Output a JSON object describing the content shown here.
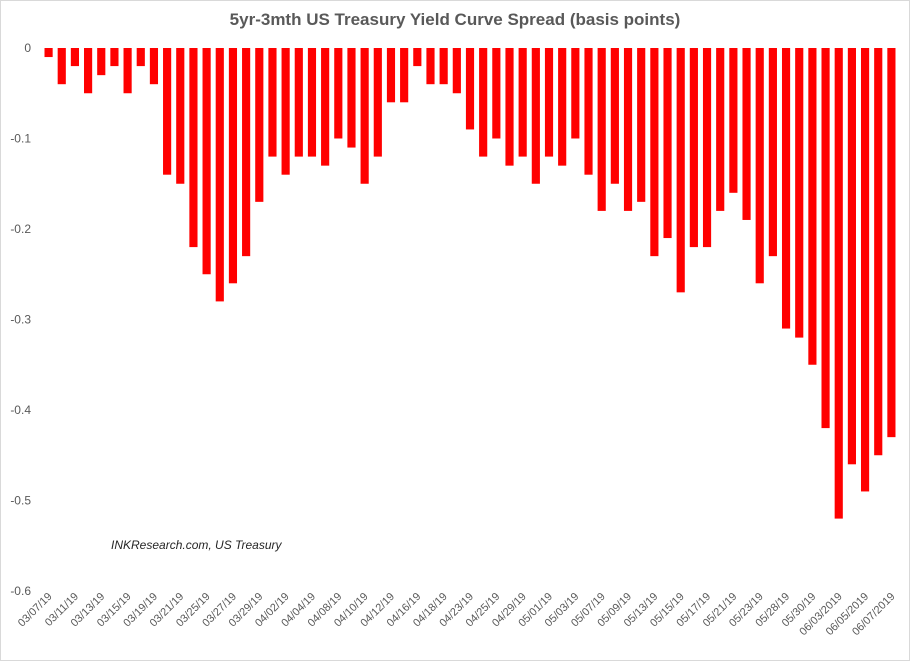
{
  "chart_data": {
    "type": "bar",
    "title": "5yr-3mth US Treasury Yield Curve Spread (basis points)",
    "annotation": "INKResearch.com, US Treasury",
    "bar_color": "#ff0000",
    "ylim": [
      -0.6,
      0
    ],
    "yticks": [
      "0",
      "-0.1",
      "-0.2",
      "-0.3",
      "-0.4",
      "-0.5",
      "-0.6"
    ],
    "grid": false,
    "xtick_labels": [
      "03/07/19",
      "03/11/19",
      "03/13/19",
      "03/15/19",
      "03/19/19",
      "03/21/19",
      "03/25/19",
      "03/27/19",
      "03/29/19",
      "04/02/19",
      "04/04/19",
      "04/08/19",
      "04/10/19",
      "04/12/19",
      "04/16/19",
      "04/18/19",
      "04/23/19",
      "04/25/19",
      "04/29/19",
      "05/01/19",
      "05/03/19",
      "05/07/19",
      "05/09/19",
      "05/13/19",
      "05/15/19",
      "05/17/19",
      "05/21/19",
      "05/23/19",
      "05/28/19",
      "05/30/19",
      "06/03/2019",
      "06/05/2019",
      "06/07/2019"
    ],
    "values": [
      -0.01,
      -0.04,
      -0.02,
      -0.05,
      -0.03,
      -0.02,
      -0.05,
      -0.02,
      -0.04,
      -0.14,
      -0.15,
      -0.22,
      -0.25,
      -0.28,
      -0.26,
      -0.23,
      -0.17,
      -0.12,
      -0.14,
      -0.12,
      -0.12,
      -0.13,
      -0.1,
      -0.11,
      -0.15,
      -0.12,
      -0.06,
      -0.06,
      -0.02,
      -0.04,
      -0.04,
      -0.05,
      -0.09,
      -0.12,
      -0.1,
      -0.13,
      -0.12,
      -0.15,
      -0.12,
      -0.13,
      -0.1,
      -0.14,
      -0.18,
      -0.15,
      -0.18,
      -0.17,
      -0.23,
      -0.21,
      -0.27,
      -0.22,
      -0.22,
      -0.18,
      -0.16,
      -0.19,
      -0.26,
      -0.23,
      -0.31,
      -0.32,
      -0.35,
      -0.42,
      -0.52,
      -0.46,
      -0.49,
      -0.45,
      -0.43
    ]
  }
}
